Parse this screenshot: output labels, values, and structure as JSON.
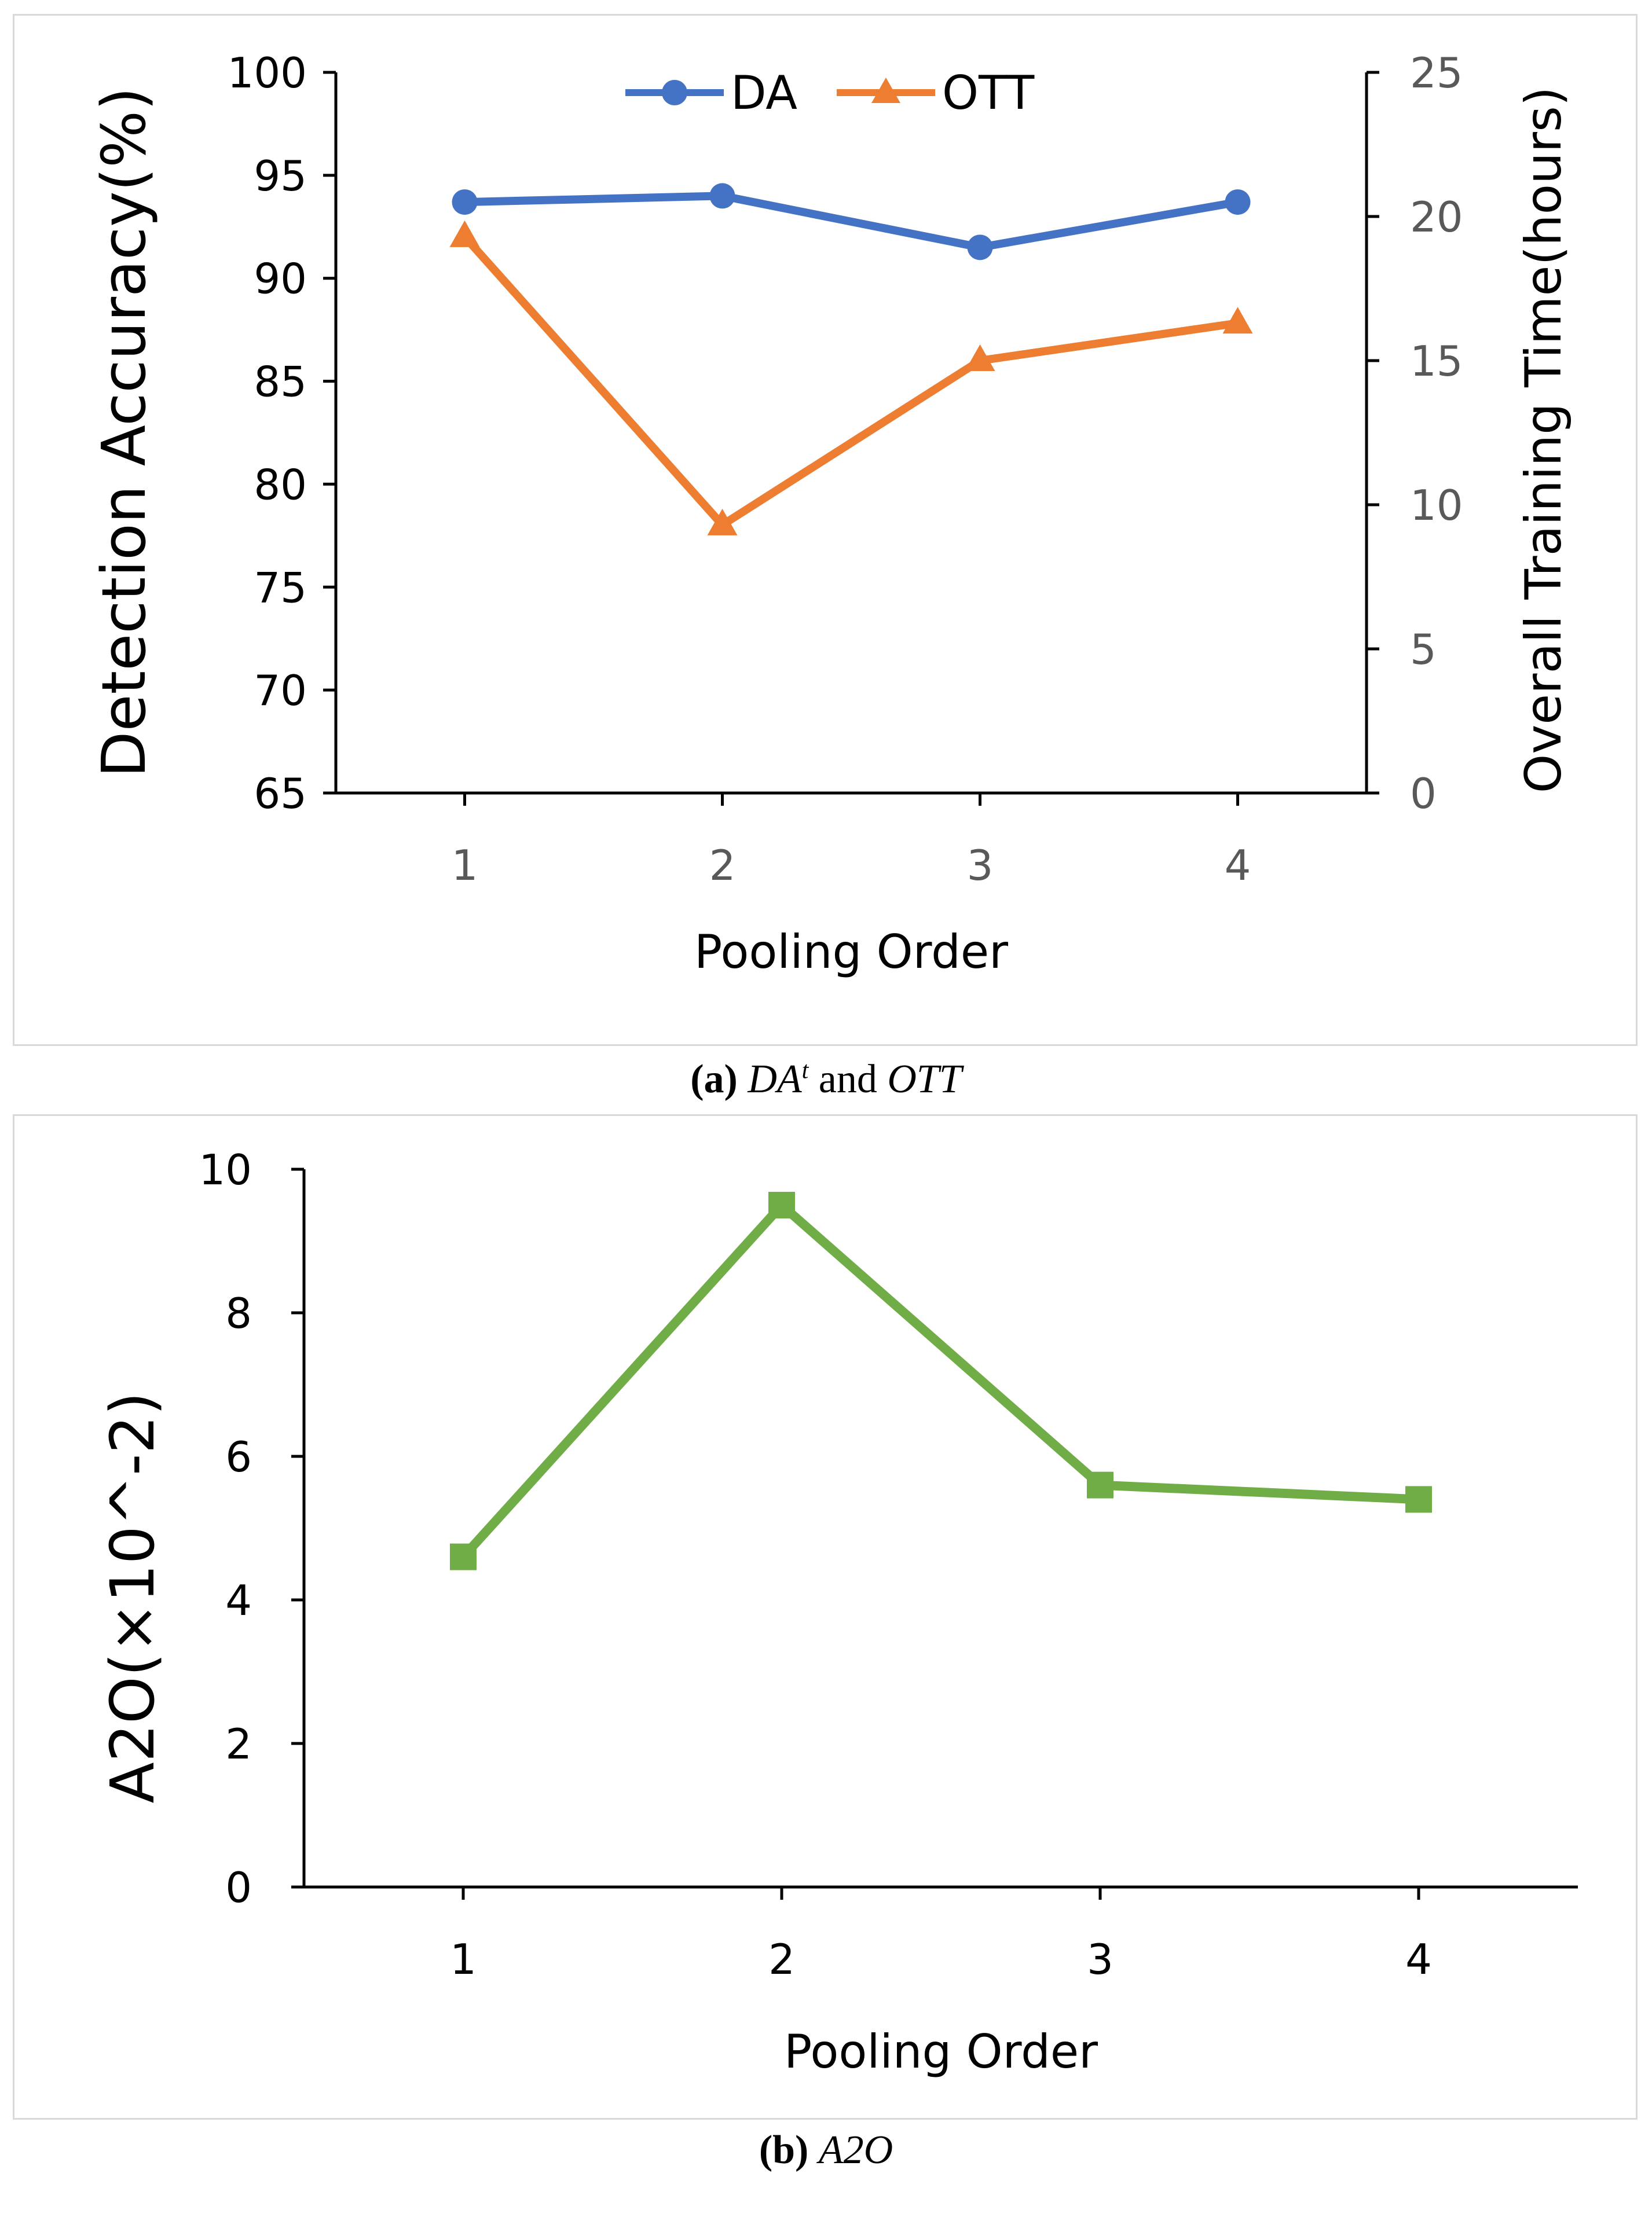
{
  "chart_data": [
    {
      "type": "line",
      "panel": "a",
      "xlabel": "Pooling Order",
      "ylabel": "Detection Accuracy(%)",
      "y2label": "Overall Training Time(hours)",
      "categories": [
        "1",
        "2",
        "3",
        "4"
      ],
      "ylim": [
        65,
        100
      ],
      "yticks": [
        "65",
        "70",
        "75",
        "80",
        "85",
        "90",
        "95",
        "100"
      ],
      "y2lim": [
        0,
        25
      ],
      "y2ticks": [
        "0",
        "5",
        "10",
        "15",
        "20",
        "25"
      ],
      "legend_position": "top-center",
      "series": [
        {
          "name": "DA",
          "axis": "left",
          "color": "#4472C4",
          "marker": "circle",
          "values": [
            93.7,
            94.0,
            91.5,
            93.7
          ]
        },
        {
          "name": "OTT",
          "axis": "right",
          "color": "#ED7D31",
          "marker": "triangle",
          "values": [
            19.3,
            9.3,
            15.0,
            16.3
          ]
        }
      ]
    },
    {
      "type": "line",
      "panel": "b",
      "xlabel": "Pooling Order",
      "ylabel": "A2O(×10^-2)",
      "categories": [
        "1",
        "2",
        "3",
        "4"
      ],
      "ylim": [
        0,
        10
      ],
      "yticks": [
        "0",
        "2",
        "4",
        "6",
        "8",
        "10"
      ],
      "series": [
        {
          "name": "A2O",
          "color": "#70AD47",
          "marker": "square",
          "values": [
            4.6,
            9.5,
            5.6,
            5.4
          ]
        }
      ]
    }
  ],
  "captions": {
    "a": {
      "label": "(a)",
      "prefix": "DA",
      "sup": "t",
      "mid": " and ",
      "suffix": "OTT"
    },
    "b": {
      "label": "(b)",
      "text": "A2O"
    }
  }
}
